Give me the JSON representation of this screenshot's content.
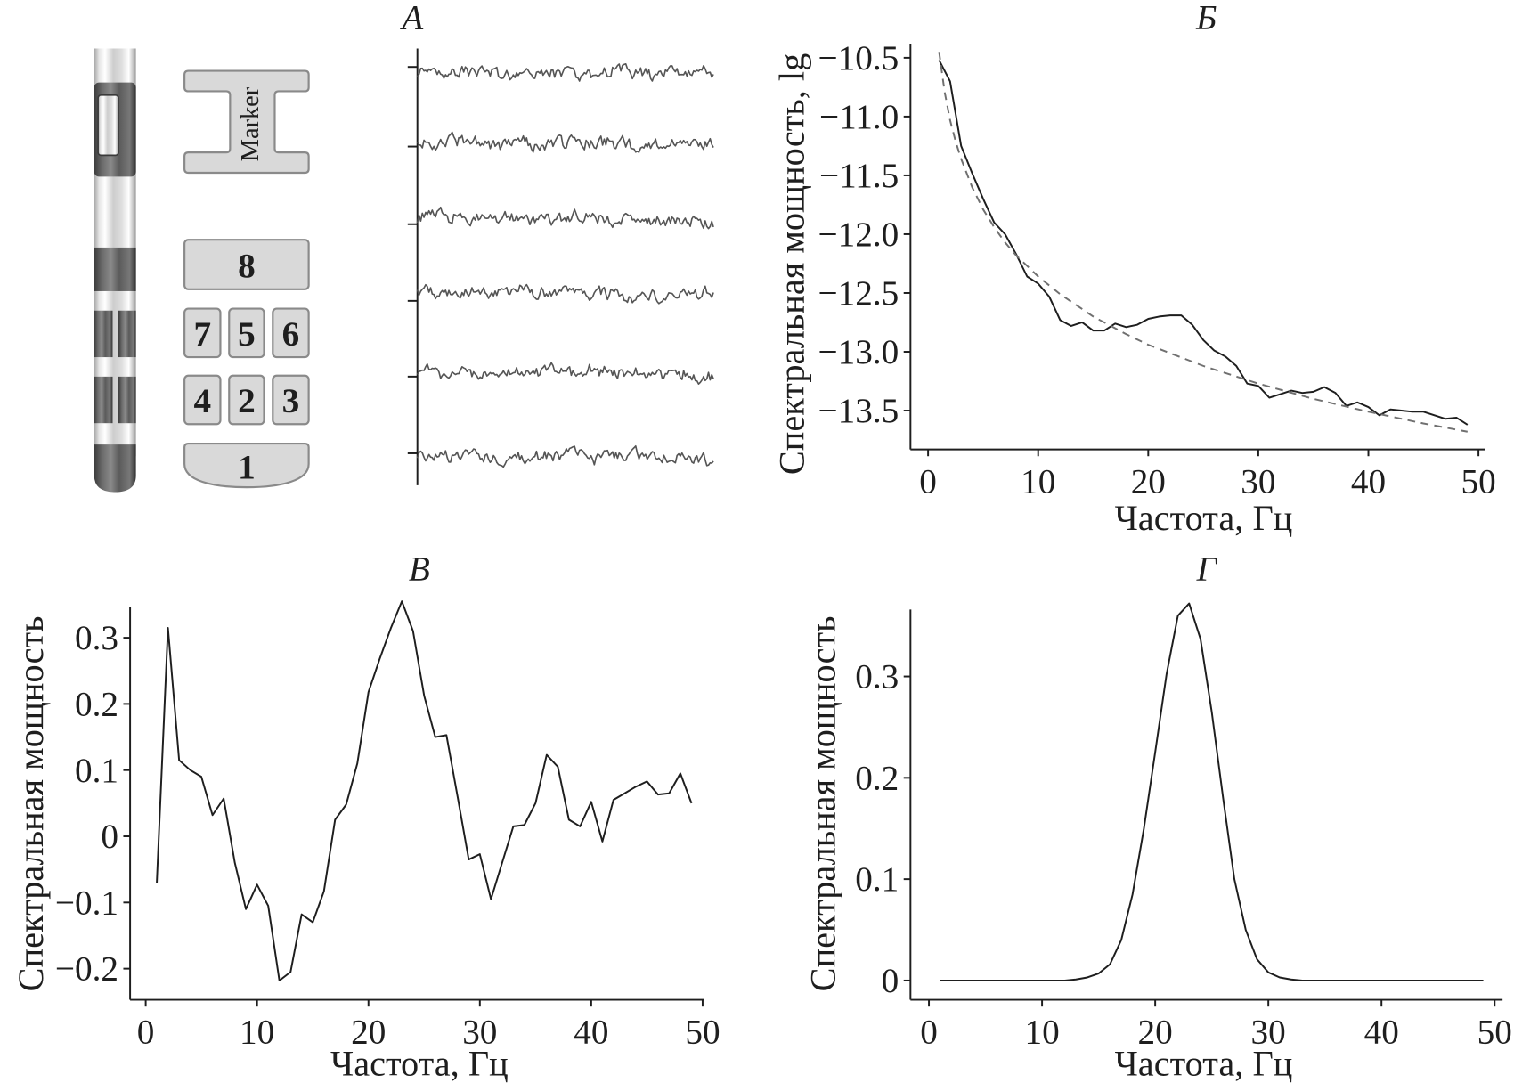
{
  "electrode": {
    "marker_label": "Marker",
    "contacts": {
      "c8": "8",
      "c7": "7",
      "c5": "5",
      "c6": "6",
      "c4": "4",
      "c2": "2",
      "c3": "3",
      "c1": "1"
    }
  },
  "colors": {
    "line": "#1e1e1e",
    "fit_line": "#707070",
    "trace": "#555555"
  },
  "chart_data": [
    {
      "type": "line",
      "title": "А",
      "series_count": 6,
      "samples_per_trace": 180
    },
    {
      "type": "line",
      "title": "Б",
      "xlabel": "Частота, Гц",
      "ylabel": "Спектральная мощность, lg",
      "xlim": [
        -1.6,
        50.6
      ],
      "ylim": [
        -13.83,
        -10.38
      ],
      "xticks": [
        0,
        10,
        20,
        30,
        40,
        50
      ],
      "xtick_labels": [
        "0",
        "10",
        "20",
        "30",
        "40",
        "50"
      ],
      "yticks": [
        -10.5,
        -11.0,
        -11.5,
        -12.0,
        -12.5,
        -13.0,
        -13.5
      ],
      "ytick_labels": [
        "−10.5",
        "−11.0",
        "−11.5",
        "−12.0",
        "−12.5",
        "−13.0",
        "−13.5"
      ],
      "series": [
        {
          "dash": false,
          "x": [
            1,
            2,
            3,
            4,
            5,
            6,
            7,
            8,
            9,
            10,
            11,
            12,
            13,
            14,
            15,
            16,
            17,
            18,
            19,
            20,
            21,
            22,
            23,
            24,
            25,
            26,
            27,
            28,
            29,
            30,
            31,
            32,
            33,
            34,
            35,
            36,
            37,
            38,
            39,
            40,
            41,
            42,
            43,
            44,
            45,
            46,
            47,
            48,
            49
          ],
          "values": [
            -10.52,
            -10.7,
            -11.25,
            -11.48,
            -11.7,
            -11.9,
            -12.0,
            -12.17,
            -12.36,
            -12.42,
            -12.53,
            -12.73,
            -12.78,
            -12.75,
            -12.82,
            -12.82,
            -12.76,
            -12.79,
            -12.77,
            -12.72,
            -12.7,
            -12.69,
            -12.69,
            -12.77,
            -12.9,
            -12.99,
            -13.04,
            -13.12,
            -13.27,
            -13.29,
            -13.39,
            -13.36,
            -13.33,
            -13.35,
            -13.34,
            -13.3,
            -13.35,
            -13.46,
            -13.43,
            -13.47,
            -13.54,
            -13.49,
            -13.5,
            -13.51,
            -13.51,
            -13.54,
            -13.57,
            -13.56,
            -13.62
          ]
        },
        {
          "dash": true,
          "x": [
            1,
            1.5,
            2,
            2.5,
            3,
            4,
            5,
            6,
            7,
            8,
            10,
            12,
            15,
            18,
            20,
            25,
            30,
            35,
            40,
            45,
            49
          ],
          "values": [
            -10.45,
            -10.79,
            -11.03,
            -11.21,
            -11.36,
            -11.6,
            -11.79,
            -11.94,
            -12.07,
            -12.18,
            -12.36,
            -12.51,
            -12.7,
            -12.85,
            -12.94,
            -13.12,
            -13.27,
            -13.4,
            -13.51,
            -13.61,
            -13.68
          ]
        }
      ]
    },
    {
      "type": "line",
      "title": "В",
      "xlabel": "Частота, Гц",
      "ylabel": "Спектральная мощность",
      "xlim": [
        -1.4,
        50.1
      ],
      "ylim": [
        -0.247,
        0.347
      ],
      "xticks": [
        0,
        10,
        20,
        30,
        40,
        50
      ],
      "xtick_labels": [
        "0",
        "10",
        "20",
        "30",
        "40",
        "50"
      ],
      "yticks": [
        0.3,
        0.2,
        0.1,
        0,
        -0.1,
        -0.2
      ],
      "ytick_labels": [
        "0.3",
        "0.2",
        "0.1",
        "0",
        "−0.1",
        "−0.2"
      ],
      "series": [
        {
          "dash": false,
          "x": [
            1,
            2,
            3,
            4,
            5,
            6,
            7,
            8,
            9,
            10,
            11,
            12,
            13,
            14,
            15,
            16,
            17,
            18,
            19,
            20,
            21,
            22,
            23,
            24,
            25,
            26,
            27,
            28,
            29,
            30,
            31,
            32,
            33,
            34,
            35,
            36,
            37,
            38,
            39,
            40,
            41,
            42,
            43,
            44,
            45,
            46,
            47,
            48,
            49
          ],
          "values": [
            -0.07,
            0.315,
            0.115,
            0.1,
            0.09,
            0.032,
            0.057,
            -0.04,
            -0.11,
            -0.073,
            -0.105,
            -0.218,
            -0.205,
            -0.118,
            -0.13,
            -0.083,
            0.025,
            0.048,
            0.11,
            0.218,
            0.268,
            0.314,
            0.355,
            0.31,
            0.212,
            0.15,
            0.153,
            0.06,
            -0.035,
            -0.027,
            -0.095,
            -0.04,
            0.015,
            0.017,
            0.05,
            0.123,
            0.105,
            0.025,
            0.015,
            0.052,
            -0.008,
            0.055,
            0.065,
            0.075,
            0.083,
            0.063,
            0.065,
            0.095,
            0.05
          ]
        }
      ]
    },
    {
      "type": "line",
      "title": "Г",
      "xlabel": "Частота, Гц",
      "ylabel": "Спектральная мощность",
      "xlim": [
        -1.63,
        50.7
      ],
      "ylim": [
        -0.019,
        0.366
      ],
      "xticks": [
        0,
        10,
        20,
        30,
        40,
        50
      ],
      "xtick_labels": [
        "0",
        "10",
        "20",
        "30",
        "40",
        "50"
      ],
      "yticks": [
        0.3,
        0.2,
        0.1,
        0
      ],
      "ytick_labels": [
        "0.3",
        "0.2",
        "0.1",
        "0"
      ],
      "series": [
        {
          "dash": false,
          "x": [
            1,
            2,
            3,
            4,
            5,
            6,
            7,
            8,
            9,
            10,
            11,
            12,
            13,
            14,
            15,
            16,
            17,
            18,
            19,
            20,
            21,
            22,
            23,
            24,
            25,
            26,
            27,
            28,
            29,
            30,
            31,
            32,
            33,
            34,
            35,
            36,
            37,
            38,
            39,
            40,
            41,
            42,
            43,
            44,
            45,
            46,
            47,
            48,
            49
          ],
          "values": [
            0,
            0,
            0,
            0,
            0,
            0,
            0,
            0,
            0,
            0,
            0,
            0,
            0.001,
            0.003,
            0.007,
            0.016,
            0.04,
            0.085,
            0.15,
            0.225,
            0.302,
            0.36,
            0.372,
            0.337,
            0.265,
            0.18,
            0.1,
            0.05,
            0.021,
            0.008,
            0.003,
            0.001,
            0,
            0,
            0,
            0,
            0,
            0,
            0,
            0,
            0,
            0,
            0,
            0,
            0,
            0,
            0,
            0,
            0
          ]
        }
      ]
    }
  ]
}
